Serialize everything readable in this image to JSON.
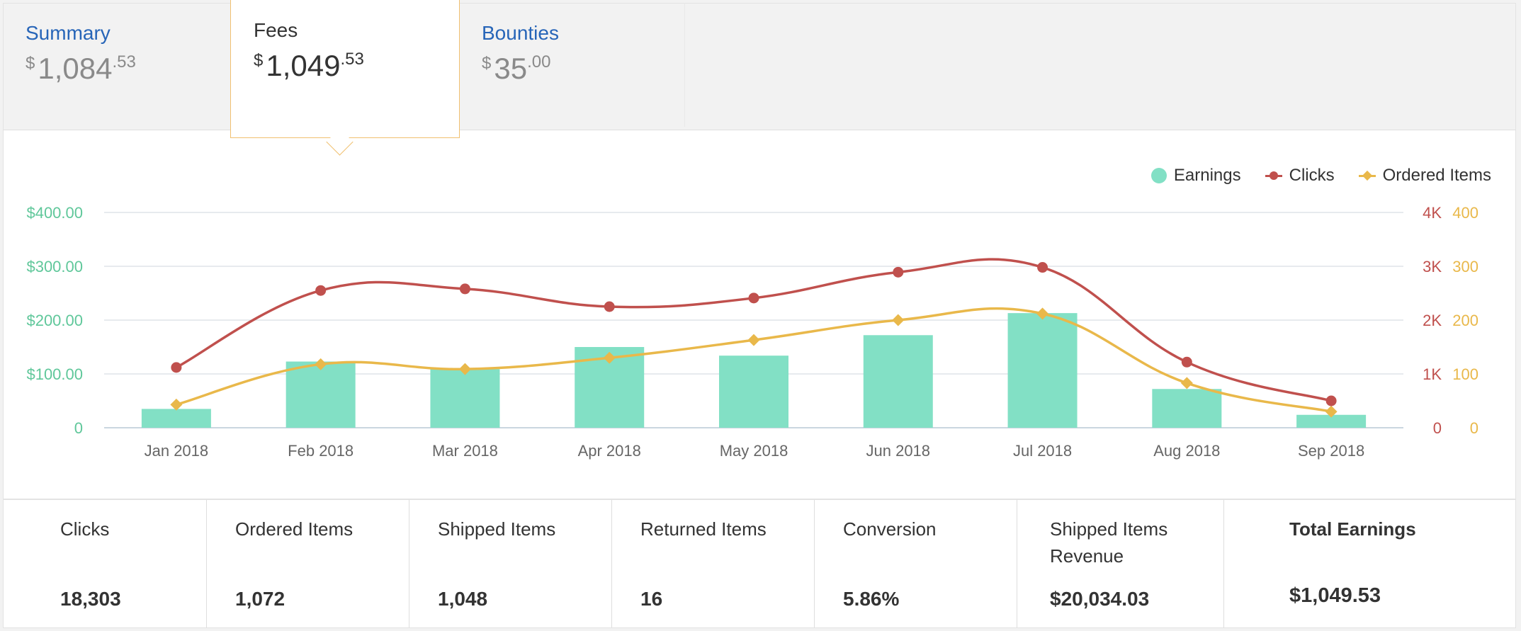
{
  "tabs": [
    {
      "label": "Summary",
      "currency": "$",
      "whole": "1,084",
      "frac": ".53"
    },
    {
      "label": "Fees",
      "currency": "$",
      "whole": "1,049",
      "frac": ".53"
    },
    {
      "label": "Bounties",
      "currency": "$",
      "whole": "35",
      "frac": ".00"
    }
  ],
  "legend": [
    {
      "label": "Earnings",
      "color": "#82e0c5",
      "icon": "circle"
    },
    {
      "label": "Clicks",
      "color": "#c0504d",
      "icon": "circle-line"
    },
    {
      "label": "Ordered Items",
      "color": "#e9b84a",
      "icon": "diamond-line"
    }
  ],
  "chart_data": {
    "type": "bar",
    "categories": [
      "Jan 2018",
      "Feb 2018",
      "Mar 2018",
      "Apr 2018",
      "May 2018",
      "Jun 2018",
      "Jul 2018",
      "Aug 2018",
      "Sep 2018"
    ],
    "series": [
      {
        "name": "Earnings",
        "type": "bar",
        "axis": "left",
        "color": "#82e0c5",
        "values": [
          35,
          123,
          109,
          150,
          134,
          172,
          213,
          72,
          24
        ]
      },
      {
        "name": "Clicks",
        "type": "line",
        "axis": "right1",
        "color": "#c0504d",
        "values": [
          1120,
          2550,
          2580,
          2250,
          2410,
          2890,
          2980,
          1220,
          500
        ]
      },
      {
        "name": "Ordered Items",
        "type": "line",
        "axis": "right2",
        "color": "#e9b84a",
        "values": [
          43,
          118,
          109,
          130,
          163,
          200,
          212,
          83,
          30
        ]
      }
    ],
    "y_left": {
      "ticks": [
        "0",
        "$100.00",
        "$200.00",
        "$300.00",
        "$400.00"
      ],
      "range": [
        0,
        400
      ],
      "color": "#5fc79a"
    },
    "y_right1": {
      "ticks": [
        "0",
        "1K",
        "2K",
        "3K",
        "4K"
      ],
      "range": [
        0,
        4000
      ],
      "color": "#c0504d"
    },
    "y_right2": {
      "ticks": [
        "0",
        "100",
        "200",
        "300",
        "400"
      ],
      "range": [
        0,
        400
      ],
      "color": "#e9b84a"
    },
    "grid": true,
    "legend_position": "top-right"
  },
  "metrics": [
    {
      "label": "Clicks",
      "value": "18,303",
      "bold_label": false
    },
    {
      "label": "Ordered Items",
      "value": "1,072",
      "bold_label": false
    },
    {
      "label": "Shipped Items",
      "value": "1,048",
      "bold_label": false
    },
    {
      "label": "Returned Items",
      "value": "16",
      "bold_label": false
    },
    {
      "label": "Conversion",
      "value": "5.86%",
      "bold_label": false
    },
    {
      "label": "Shipped Items Revenue",
      "value": "$20,034.03",
      "bold_label": false
    },
    {
      "label": "Total Earnings",
      "value": "$1,049.53",
      "bold_label": true
    }
  ]
}
